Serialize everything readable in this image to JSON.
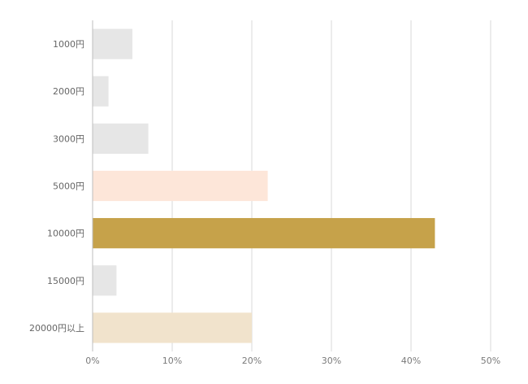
{
  "chart_data": {
    "type": "bar",
    "orientation": "horizontal",
    "title": "",
    "xlabel": "",
    "ylabel": "",
    "categories": [
      "1000円",
      "2000円",
      "3000円",
      "5000円",
      "10000円",
      "15000円",
      "20000円以上"
    ],
    "values": [
      5,
      2,
      7,
      22,
      43,
      3,
      20
    ],
    "bar_colors": [
      "#e6e6e6",
      "#e6e6e6",
      "#e6e6e6",
      "#fde6d9",
      "#c6a24a",
      "#e6e6e6",
      "#f1e3cc"
    ],
    "xlim": [
      0,
      50
    ],
    "x_ticks": [
      0,
      10,
      20,
      30,
      40,
      50
    ],
    "x_tick_labels": [
      "0%",
      "10%",
      "20%",
      "30%",
      "40%",
      "50%"
    ],
    "grid": "vertical",
    "legend": "none"
  }
}
